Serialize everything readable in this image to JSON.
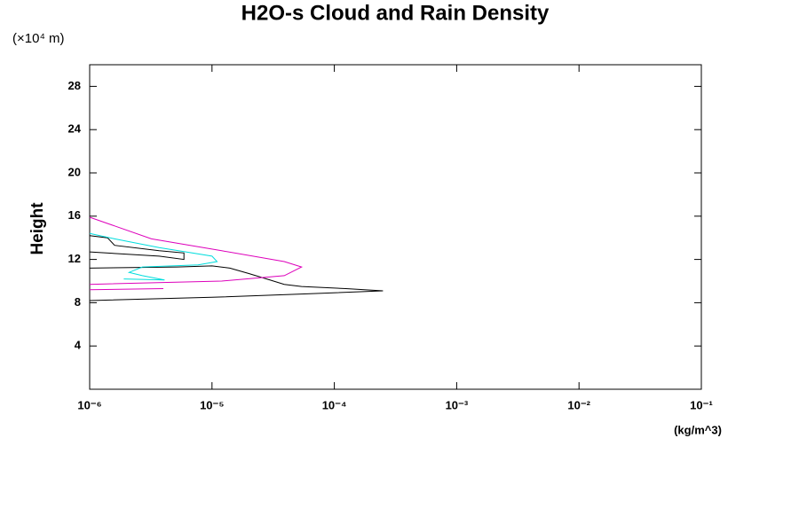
{
  "chart_data": {
    "type": "line",
    "title": "H2O-s Cloud and Rain Density",
    "y_unit": "(×10⁴ m)",
    "ylabel": "Height",
    "x_unit": "(kg/m^3)",
    "xscale": "log",
    "xlim": [
      1e-06,
      0.1
    ],
    "xticks": [
      {
        "value": 1e-06,
        "label": "10⁻⁶"
      },
      {
        "value": 1e-05,
        "label": "10⁻⁵"
      },
      {
        "value": 0.0001,
        "label": "10⁻⁴"
      },
      {
        "value": 0.001,
        "label": "10⁻³"
      },
      {
        "value": 0.01,
        "label": "10⁻²"
      },
      {
        "value": 0.1,
        "label": "10⁻¹"
      }
    ],
    "ylim": [
      0,
      30
    ],
    "yticks": [
      4,
      8,
      12,
      16,
      20,
      24,
      28
    ],
    "series": [
      {
        "color": "#000000",
        "x": [
          1e-06,
          1e-05,
          5.4e-05,
          0.00025,
          0.000124,
          5.4e-05,
          3.9e-05,
          2.8e-05,
          2e-05,
          1.4e-05,
          1e-05,
          5.2e-06,
          1e-06
        ],
        "values": [
          8.2,
          8.5,
          8.8,
          9.1,
          9.3,
          9.5,
          9.7,
          10.2,
          10.7,
          11.2,
          11.4,
          11.3,
          11.2
        ]
      },
      {
        "color": "#000000",
        "x": [
          1e-06,
          3.7e-06,
          5.9e-06,
          5.9e-06,
          3.7e-06,
          1.6e-06,
          1.4e-06,
          1e-06
        ],
        "values": [
          12.7,
          12.3,
          12.0,
          12.6,
          12.8,
          13.3,
          14.0,
          14.2
        ]
      },
      {
        "color": "#00dddd",
        "x": [
          1e-06,
          1.6e-06,
          3.7e-06,
          1e-05,
          1.1e-05,
          7.7e-06,
          2.7e-06,
          2.1e-06,
          2.7e-06,
          4.1e-06,
          1.9e-06
        ],
        "values": [
          14.4,
          13.9,
          13.1,
          12.3,
          11.8,
          11.5,
          11.3,
          10.8,
          10.5,
          10.1,
          10.2
        ]
      },
      {
        "color": "#dd00bb",
        "x": [
          1e-06,
          1.6e-06,
          3.2e-06,
          1.2e-05,
          3.9e-05,
          5.4e-05,
          3.9e-05,
          1.2e-05,
          1e-06
        ],
        "values": [
          15.9,
          15.1,
          13.9,
          12.8,
          11.8,
          11.3,
          10.5,
          10.0,
          9.7
        ]
      },
      {
        "color": "#dd00bb",
        "x": [
          1e-06,
          4e-06
        ],
        "values": [
          9.2,
          9.3
        ]
      }
    ]
  }
}
